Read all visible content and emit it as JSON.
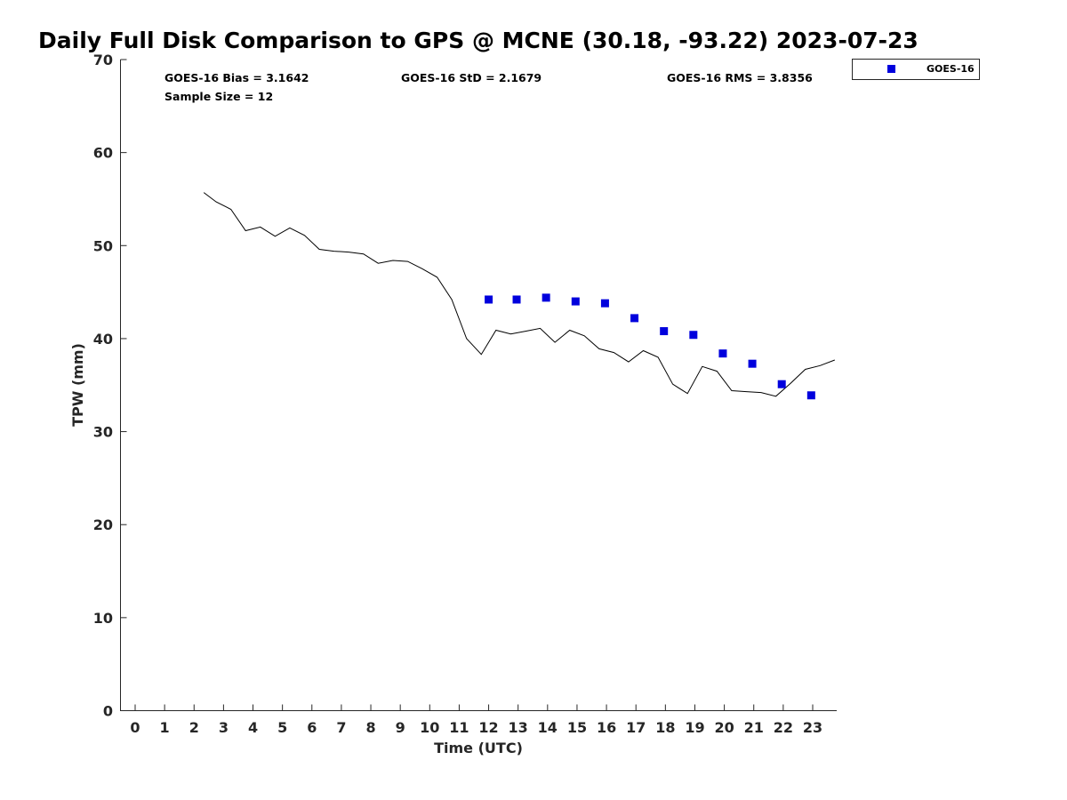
{
  "chart_data": {
    "type": "line",
    "title": "Daily Full Disk Comparison to GPS @ MCNE (30.18, -93.22) 2023-07-23",
    "xlabel": "Time (UTC)",
    "ylabel": "TPW (mm)",
    "xlim": [
      -0.5,
      23.75
    ],
    "ylim": [
      0,
      70
    ],
    "x_ticks": [
      0,
      1,
      2,
      3,
      4,
      5,
      6,
      7,
      8,
      9,
      10,
      11,
      12,
      13,
      14,
      15,
      16,
      17,
      18,
      19,
      20,
      21,
      22,
      23
    ],
    "y_ticks": [
      0,
      10,
      20,
      30,
      40,
      50,
      60,
      70
    ],
    "grid": false,
    "legend_position": "top-right",
    "stats": {
      "bias": "GOES-16 Bias = 3.1642",
      "std": "GOES-16 StD = 2.1679",
      "rms": "GOES-16 RMS = 3.8356",
      "sample": "Sample Size = 12"
    },
    "series": [
      {
        "type": "line",
        "color": "#000000",
        "x": [
          2.33,
          2.75,
          3.25,
          3.75,
          4.25,
          4.75,
          5.25,
          5.75,
          6.25,
          6.75,
          7.25,
          7.75,
          8.25,
          8.75,
          9.25,
          9.75,
          10.25,
          10.75,
          11.25,
          11.75,
          12.25,
          12.75,
          13.25,
          13.75,
          14.25,
          14.75,
          15.25,
          15.75,
          16.25,
          16.75,
          17.25,
          17.75,
          18.25,
          18.75,
          19.25,
          19.75,
          20.25,
          20.75,
          21.25,
          21.75,
          22.25,
          22.75,
          23.25,
          23.75
        ],
        "values": [
          55.7,
          54.7,
          53.9,
          51.6,
          52.0,
          51.0,
          51.9,
          51.1,
          49.6,
          49.4,
          49.3,
          49.1,
          48.1,
          48.4,
          48.3,
          47.5,
          46.6,
          44.2,
          40.0,
          38.3,
          40.9,
          40.5,
          40.8,
          41.1,
          39.6,
          40.9,
          40.3,
          38.9,
          38.5,
          37.5,
          38.7,
          38.0,
          35.1,
          34.1,
          37.0,
          36.5,
          34.4,
          34.3,
          34.2,
          33.8,
          35.2,
          36.7,
          37.1,
          37.7
        ]
      },
      {
        "name": "GOES-16",
        "type": "scatter",
        "marker": "square",
        "color": "#0000dd",
        "x": [
          12,
          12.95,
          13.95,
          14.95,
          15.95,
          16.95,
          17.95,
          18.95,
          19.95,
          20.95,
          21.95,
          22.95
        ],
        "values": [
          44.2,
          44.2,
          44.4,
          44.0,
          43.8,
          42.2,
          40.8,
          40.4,
          38.4,
          37.3,
          35.1,
          33.9
        ]
      }
    ]
  }
}
